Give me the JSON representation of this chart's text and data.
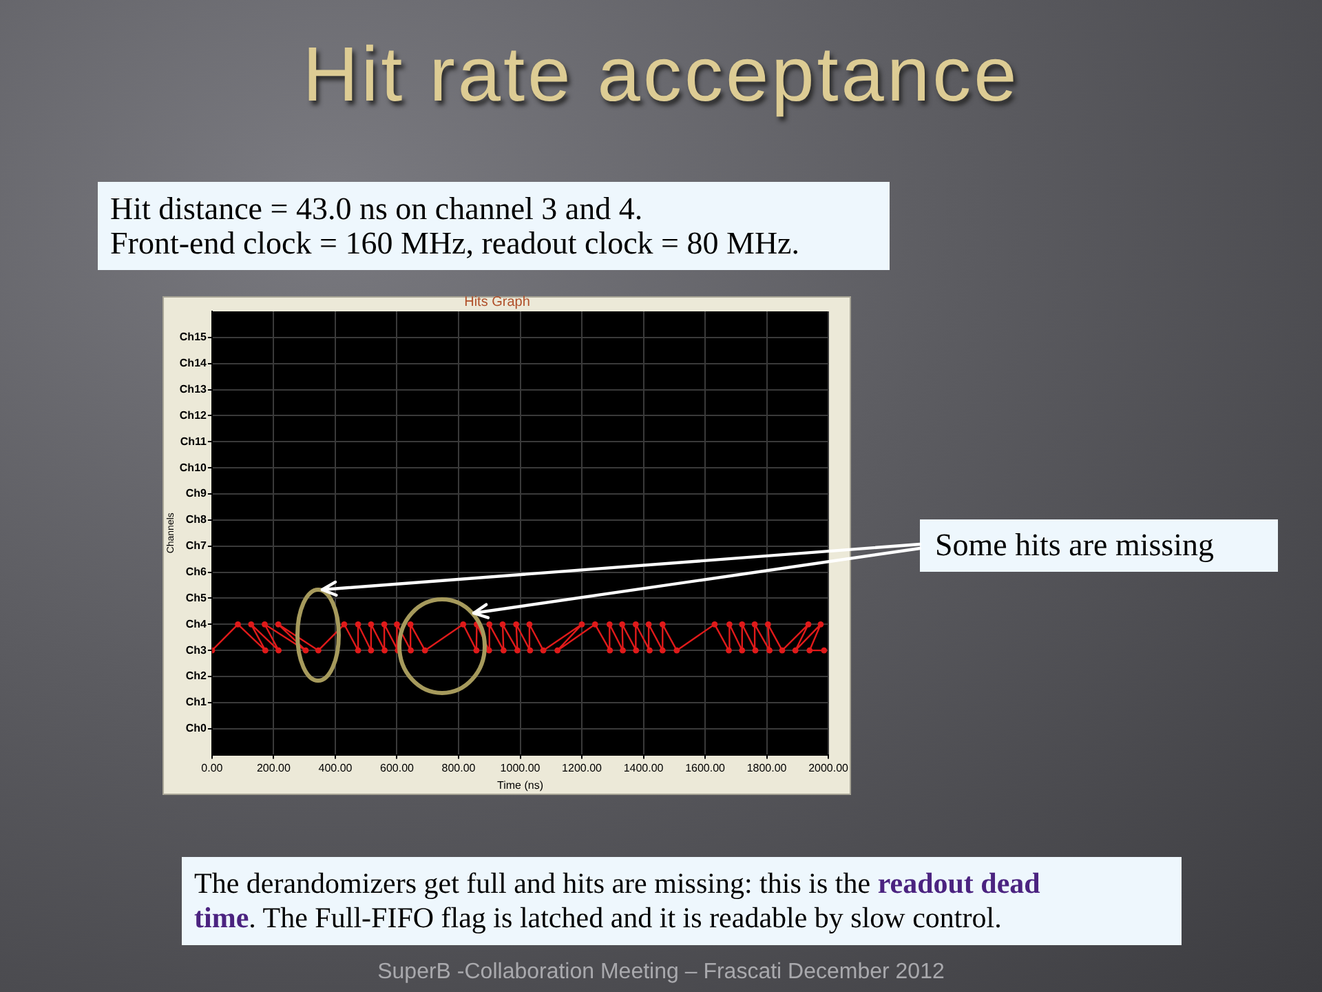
{
  "chart_data": {
    "type": "line",
    "orientation": "horizontal",
    "title": "Hit rate acceptance",
    "subtitle": "Hits Graph",
    "xlabel": "Time (ns)",
    "ylabel": "Channels",
    "annotations": [
      "Hit distance = 43.0 ns on channel 3 and 4.",
      "Front-end clock = 160 MHz, readout clock = 80 MHz.",
      "Some hits are missing",
      "The derandomizers get full and hits are missing: this is the ",
      "readout dead",
      "time",
      ". The Full-FIFO flag is latched and it is readable by slow control.",
      "SuperB -Collaboration Meeting – Frascati December 2012"
    ],
    "categories": [
      "Ch15",
      "Ch14",
      "Ch13",
      "Ch12",
      "Ch11",
      "Ch10",
      "Ch9",
      "Ch8",
      "Ch7",
      "Ch6",
      "Ch5",
      "Ch4",
      "Ch3",
      "Ch2",
      "Ch1",
      "Ch0"
    ],
    "series": [
      {
        "color": "#e01a1a",
        "x": [
          "Ch3",
          "Ch4",
          "Ch3",
          "Ch4",
          "Ch3",
          "Ch4",
          "Ch3",
          "Ch4",
          "Ch3",
          "Ch4",
          "Ch3",
          "Ch4",
          "Ch3",
          "Ch4",
          "Ch3",
          "Ch4",
          "Ch3",
          "Ch4",
          "Ch3",
          "Ch4",
          "Ch3",
          "Ch4",
          "Ch3",
          "Ch4",
          "Ch3",
          "Ch4",
          "Ch3",
          "Ch4",
          "Ch3",
          "Ch4",
          "Ch3",
          "Ch4",
          "Ch3",
          "Ch4",
          "Ch3",
          "Ch4",
          "Ch3",
          "Ch4",
          "Ch3",
          "Ch4",
          "Ch3",
          "Ch4",
          "Ch3",
          "Ch4",
          "Ch3",
          "Ch4",
          "Ch3",
          "Ch4",
          "Ch3",
          "Ch4",
          "Ch3",
          "Ch4",
          "Ch3",
          "Ch4",
          "Ch3",
          "Ch4",
          "Ch3",
          "Ch4",
          "Ch3",
          "Ch4",
          "Ch3",
          "Ch3"
        ],
        "values": [
          0,
          84,
          173,
          127,
          216,
          171,
          304,
          215,
          345,
          429,
          474,
          474,
          516,
          516,
          560,
          559,
          603,
          600,
          645,
          644,
          691,
          815,
          858,
          859,
          899,
          900,
          946,
          943,
          991,
          987,
          1032,
          1030,
          1075,
          1200,
          1121,
          1243,
          1291,
          1290,
          1333,
          1331,
          1376,
          1375,
          1420,
          1417,
          1462,
          1462,
          1508,
          1631,
          1677,
          1679,
          1720,
          1720,
          1763,
          1761,
          1809,
          1804,
          1850,
          1935,
          1893,
          1975,
          1939,
          1986
        ]
      }
    ],
    "marker": "circle",
    "line_style": "solid",
    "grid": true,
    "xlim": [
      0,
      2000
    ],
    "xticks": [
      {
        "value": 0,
        "label": "0.00"
      },
      {
        "value": 200,
        "label": "200.00"
      },
      {
        "value": 400,
        "label": "400.00"
      },
      {
        "value": 600,
        "label": "600.00"
      },
      {
        "value": 800,
        "label": "800.00"
      },
      {
        "value": 1000,
        "label": "1000.00"
      },
      {
        "value": 1200,
        "label": "1200.00"
      },
      {
        "value": 1400,
        "label": "1400.00"
      },
      {
        "value": 1600,
        "label": "1600.00"
      },
      {
        "value": 1800,
        "label": "1800.00"
      },
      {
        "value": 2000,
        "label": "2000.00"
      }
    ]
  }
}
